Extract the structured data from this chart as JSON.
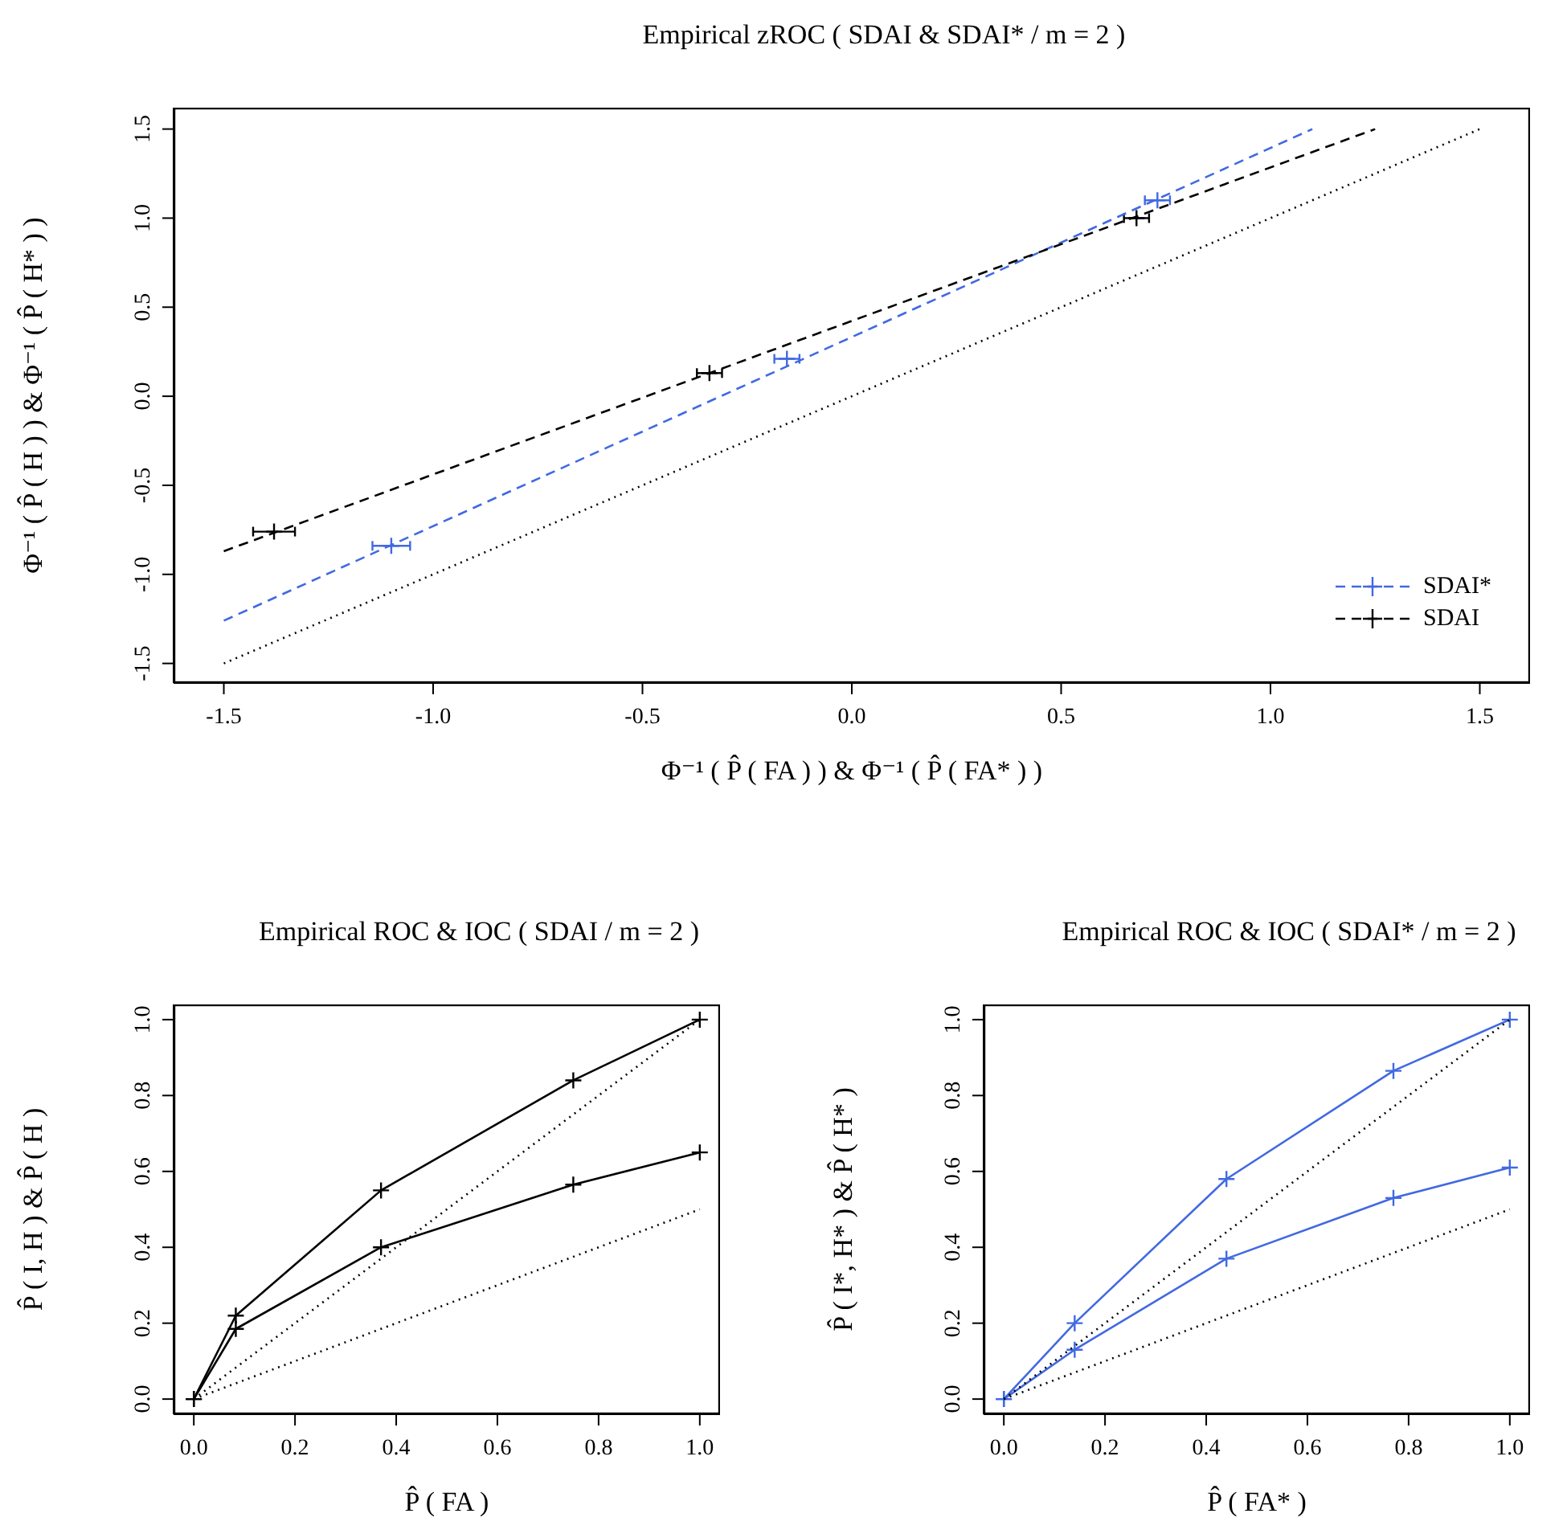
{
  "chart_data": [
    {
      "type": "scatter",
      "title": "Empirical zROC ( SDAI & SDAI* / m = 2 )",
      "xlabel": "Φ⁻¹ ( P̂ ( FA ) )  &  Φ⁻¹ ( P̂ ( FA* ) )",
      "ylabel": "Φ⁻¹ ( P̂ ( H ) )  &  Φ⁻¹ ( P̂ ( H* ) )",
      "xlim": [
        -1.62,
        1.62
      ],
      "ylim": [
        -1.61,
        1.62
      ],
      "xticks": [
        -1.5,
        {
          "value": -1,
          "label": "-1.0"
        },
        -0.5,
        {
          "value": 0,
          "label": "0.0"
        },
        0.5,
        {
          "value": 1,
          "label": "1.0"
        },
        1.5
      ],
      "yticks": [
        -1.5,
        {
          "value": -1,
          "label": "-1.0"
        },
        -0.5,
        {
          "value": 0,
          "label": "0.0"
        },
        0.5,
        {
          "value": 1,
          "label": "1.0"
        },
        1.5
      ],
      "grid": false,
      "legend": "bottom right",
      "series": [
        {
          "name": "SDAI*",
          "color": "#4169e1",
          "marker": "cross",
          "line_style": "dashed",
          "x": [
            -1.1,
            -0.155,
            0.73
          ],
          "values": [
            -0.84,
            0.21,
            1.1
          ],
          "xerrors": [
            0.045,
            0.03,
            0.03
          ]
        },
        {
          "name": "SDAI",
          "color": "#000000",
          "marker": "cross",
          "line_style": "dashed",
          "x": [
            -1.38,
            -0.34,
            0.68
          ],
          "values": [
            -0.76,
            0.13,
            1.0
          ],
          "xerrors": [
            0.05,
            0.03,
            0.03
          ]
        },
        {
          "type": "line",
          "color": "#4169e1",
          "marker": "none",
          "line_style": "dashed",
          "x": [
            -1.5,
            1.1
          ],
          "values": [
            -1.26,
            1.5
          ]
        },
        {
          "type": "line",
          "color": "#000000",
          "marker": "none",
          "line_style": "dashed",
          "x": [
            -1.5,
            1.25
          ],
          "values": [
            -0.87,
            1.5
          ]
        },
        {
          "type": "line",
          "color": "#000000",
          "marker": "none",
          "line_style": "dotted",
          "x": [
            -1.5,
            1.5
          ],
          "values": [
            -1.5,
            1.5
          ]
        }
      ]
    },
    {
      "type": "line",
      "title": "Empirical ROC & IOC ( SDAI / m = 2 )",
      "xlabel": "P̂ ( FA )",
      "ylabel": "P̂ ( I, H )  &  P̂ ( H )",
      "xlim": [
        -0.04,
        1.04
      ],
      "ylim": [
        -0.04,
        1.04
      ],
      "xticks": [
        {
          "value": 0,
          "label": "0.0"
        },
        0.2,
        0.4,
        0.6,
        0.8,
        {
          "value": 1,
          "label": "1.0"
        }
      ],
      "yticks": [
        {
          "value": 0,
          "label": "0.0"
        },
        0.2,
        0.4,
        0.6,
        0.8,
        {
          "value": 1,
          "label": "1.0"
        }
      ],
      "grid": false,
      "series": [
        {
          "color": "#000000",
          "marker": "cross",
          "line_style": "solid",
          "x": [
            0,
            0.083,
            0.37,
            0.75,
            1
          ],
          "values": [
            0,
            0.22,
            0.55,
            0.84,
            1
          ]
        },
        {
          "color": "#000000",
          "marker": "cross",
          "line_style": "solid",
          "x": [
            0,
            0.083,
            0.37,
            0.75,
            1
          ],
          "values": [
            0,
            0.185,
            0.4,
            0.565,
            0.65
          ]
        },
        {
          "color": "#000000",
          "marker": "none",
          "line_style": "dotted",
          "x": [
            0,
            1
          ],
          "values": [
            0,
            1
          ]
        },
        {
          "color": "#000000",
          "marker": "none",
          "line_style": "dotted",
          "x": [
            0,
            1
          ],
          "values": [
            0,
            0.5
          ]
        }
      ]
    },
    {
      "type": "line",
      "title": "Empirical ROC & IOC ( SDAI* / m = 2 )",
      "xlabel": "P̂ ( FA* )",
      "ylabel": "P̂ ( I*, H* )  &  P̂ ( H* )",
      "xlim": [
        -0.04,
        1.04
      ],
      "ylim": [
        -0.04,
        1.04
      ],
      "xticks": [
        {
          "value": 0,
          "label": "0.0"
        },
        0.2,
        0.4,
        0.6,
        0.8,
        {
          "value": 1,
          "label": "1.0"
        }
      ],
      "yticks": [
        {
          "value": 0,
          "label": "0.0"
        },
        0.2,
        0.4,
        0.6,
        0.8,
        {
          "value": 1,
          "label": "1.0"
        }
      ],
      "grid": false,
      "series": [
        {
          "color": "#4169e1",
          "marker": "cross",
          "line_style": "solid",
          "x": [
            0,
            0.14,
            0.44,
            0.77,
            1
          ],
          "values": [
            0,
            0.2,
            0.58,
            0.865,
            1
          ]
        },
        {
          "color": "#4169e1",
          "marker": "cross",
          "line_style": "solid",
          "x": [
            0,
            0.14,
            0.44,
            0.77,
            1
          ],
          "values": [
            0,
            0.13,
            0.37,
            0.53,
            0.61
          ]
        },
        {
          "color": "#000000",
          "marker": "none",
          "line_style": "dotted",
          "x": [
            0,
            1
          ],
          "values": [
            0,
            1
          ]
        },
        {
          "color": "#000000",
          "marker": "none",
          "line_style": "dotted",
          "x": [
            0,
            1
          ],
          "values": [
            0,
            0.5
          ]
        }
      ]
    }
  ]
}
